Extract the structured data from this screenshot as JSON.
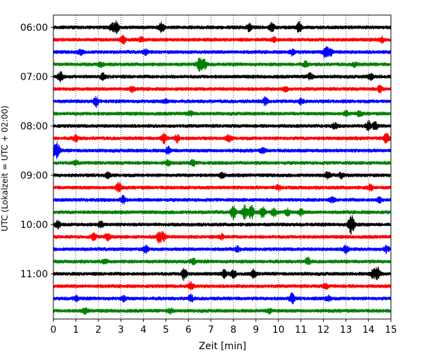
{
  "chart_data": {
    "type": "line",
    "title": "",
    "xlabel": "Zeit  [min]",
    "ylabel": "UTC (Lokalzeit = UTC + 02:00)",
    "xlim": [
      0,
      15
    ],
    "xticks": [
      "0",
      "1",
      "2",
      "3",
      "4",
      "5",
      "6",
      "7",
      "8",
      "9",
      "10",
      "11",
      "12",
      "13",
      "14",
      "15"
    ],
    "yticks": [
      {
        "label": "06:00",
        "row": 0
      },
      {
        "label": "07:00",
        "row": 4
      },
      {
        "label": "08:00",
        "row": 8
      },
      {
        "label": "09:00",
        "row": 12
      },
      {
        "label": "10:00",
        "row": 16
      },
      {
        "label": "11:00",
        "row": 20
      }
    ],
    "grid": "vertical dotted lines at each minute",
    "row_colors": [
      "#000000",
      "#ff0000",
      "#0000ff",
      "#008000"
    ],
    "rows": [
      {
        "start": "06:00",
        "events": [
          [
            2.8,
            1.0
          ],
          [
            4.8,
            0.8
          ],
          [
            8.7,
            0.6
          ],
          [
            9.7,
            0.7
          ],
          [
            10.9,
            0.9
          ],
          [
            2.6,
            0.6
          ]
        ]
      },
      {
        "start": "06:15",
        "events": [
          [
            3.1,
            0.6
          ],
          [
            3.9,
            0.4
          ],
          [
            9.8,
            0.4
          ],
          [
            14.6,
            0.4
          ]
        ]
      },
      {
        "start": "06:30",
        "events": [
          [
            1.2,
            0.4
          ],
          [
            4.1,
            0.4
          ],
          [
            10.6,
            0.5
          ],
          [
            12.1,
            1.0
          ],
          [
            12.3,
            0.6
          ]
        ]
      },
      {
        "start": "06:45",
        "events": [
          [
            6.5,
            1.1
          ],
          [
            6.7,
            0.8
          ],
          [
            2.1,
            0.4
          ],
          [
            11.2,
            0.4
          ],
          [
            13.4,
            0.4
          ]
        ]
      },
      {
        "start": "07:00",
        "events": [
          [
            0.3,
            0.8
          ],
          [
            2.2,
            0.5
          ],
          [
            11.4,
            0.6
          ],
          [
            14.1,
            0.5
          ]
        ]
      },
      {
        "start": "07:15",
        "events": [
          [
            3.5,
            0.4
          ],
          [
            10.3,
            0.4
          ],
          [
            14.5,
            0.5
          ]
        ]
      },
      {
        "start": "07:30",
        "events": [
          [
            1.9,
            0.8
          ],
          [
            9.4,
            0.7
          ],
          [
            11.0,
            0.5
          ],
          [
            5.0,
            0.3
          ]
        ]
      },
      {
        "start": "07:45",
        "events": [
          [
            6.1,
            0.4
          ],
          [
            13.0,
            0.4
          ],
          [
            13.6,
            0.4
          ]
        ]
      },
      {
        "start": "08:00",
        "events": [
          [
            12.5,
            0.4
          ],
          [
            14.0,
            0.8
          ],
          [
            14.3,
            0.6
          ]
        ]
      },
      {
        "start": "08:15",
        "events": [
          [
            4.9,
            0.8
          ],
          [
            5.5,
            0.6
          ],
          [
            7.8,
            0.5
          ],
          [
            14.8,
            0.8
          ],
          [
            1.0,
            0.5
          ]
        ]
      },
      {
        "start": "08:30",
        "events": [
          [
            0.1,
            1.0
          ],
          [
            0.2,
            0.7
          ],
          [
            5.1,
            0.6
          ],
          [
            9.3,
            0.4
          ]
        ]
      },
      {
        "start": "08:45",
        "events": [
          [
            5.1,
            0.4
          ],
          [
            6.2,
            0.5
          ],
          [
            1.0,
            0.3
          ]
        ]
      },
      {
        "start": "09:00",
        "events": [
          [
            2.4,
            0.4
          ],
          [
            7.5,
            0.4
          ],
          [
            12.2,
            0.6
          ],
          [
            12.8,
            0.4
          ]
        ]
      },
      {
        "start": "09:15",
        "events": [
          [
            2.9,
            0.8
          ],
          [
            10.0,
            0.4
          ],
          [
            14.1,
            0.5
          ]
        ]
      },
      {
        "start": "09:30",
        "events": [
          [
            3.1,
            0.6
          ],
          [
            12.4,
            0.4
          ],
          [
            14.5,
            0.4
          ]
        ]
      },
      {
        "start": "09:45",
        "events": [
          [
            8.0,
            1.1
          ],
          [
            8.5,
            1.2
          ],
          [
            8.8,
            1.3
          ],
          [
            9.3,
            0.9
          ],
          [
            9.8,
            0.7
          ],
          [
            10.4,
            0.6
          ],
          [
            11.0,
            0.5
          ]
        ]
      },
      {
        "start": "10:00",
        "events": [
          [
            0.2,
            0.6
          ],
          [
            2.1,
            0.5
          ],
          [
            13.2,
            1.1
          ],
          [
            13.3,
            0.9
          ]
        ]
      },
      {
        "start": "10:15",
        "events": [
          [
            1.8,
            0.6
          ],
          [
            2.4,
            0.7
          ],
          [
            4.7,
            1.0
          ],
          [
            4.9,
            0.7
          ],
          [
            7.5,
            0.4
          ]
        ]
      },
      {
        "start": "10:30",
        "events": [
          [
            4.1,
            0.6
          ],
          [
            13.0,
            0.7
          ],
          [
            14.8,
            0.6
          ],
          [
            8.2,
            0.4
          ]
        ]
      },
      {
        "start": "10:45",
        "events": [
          [
            6.2,
            0.5
          ],
          [
            11.3,
            0.6
          ],
          [
            2.3,
            0.3
          ]
        ]
      },
      {
        "start": "11:00",
        "events": [
          [
            5.8,
            1.0
          ],
          [
            7.6,
            0.6
          ],
          [
            8.0,
            0.7
          ],
          [
            8.9,
            0.6
          ],
          [
            14.4,
            1.1
          ],
          [
            14.2,
            0.7
          ]
        ]
      },
      {
        "start": "11:15",
        "events": [
          [
            6.1,
            0.6
          ],
          [
            12.1,
            0.4
          ]
        ]
      },
      {
        "start": "11:30",
        "events": [
          [
            6.1,
            0.6
          ],
          [
            10.6,
            0.9
          ],
          [
            1.0,
            0.4
          ],
          [
            3.1,
            0.4
          ],
          [
            12.2,
            0.5
          ]
        ]
      },
      {
        "start": "11:45",
        "events": [
          [
            1.4,
            0.5
          ],
          [
            5.2,
            0.4
          ],
          [
            9.6,
            0.4
          ]
        ]
      }
    ]
  }
}
